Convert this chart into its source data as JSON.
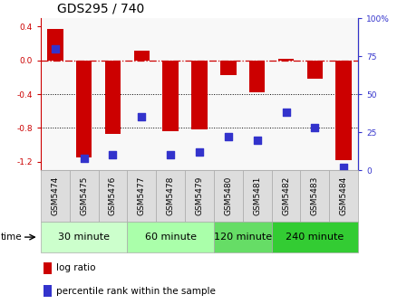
{
  "title": "GDS295 / 740",
  "samples": [
    "GSM5474",
    "GSM5475",
    "GSM5476",
    "GSM5477",
    "GSM5478",
    "GSM5479",
    "GSM5480",
    "GSM5481",
    "GSM5482",
    "GSM5483",
    "GSM5484"
  ],
  "log_ratio": [
    0.37,
    -1.15,
    -0.87,
    0.12,
    -0.84,
    -0.82,
    -0.17,
    -0.38,
    0.02,
    -0.22,
    -1.18
  ],
  "percentile": [
    80,
    8,
    10,
    35,
    10,
    12,
    22,
    20,
    38,
    28,
    2
  ],
  "ylim_left": [
    -1.3,
    0.5
  ],
  "ylim_right": [
    0,
    100
  ],
  "yticks_left": [
    -1.2,
    -0.8,
    -0.4,
    0.0,
    0.4
  ],
  "yticks_right": [
    0,
    25,
    50,
    75,
    100
  ],
  "ytick_labels_right": [
    "0",
    "25",
    "50",
    "75",
    "100%"
  ],
  "bar_color": "#cc0000",
  "dot_color": "#3333cc",
  "hline_color": "#cc0000",
  "grid_color": "#000000",
  "time_groups": [
    {
      "label": "30 minute",
      "start": 0,
      "end": 2,
      "color": "#ccffcc"
    },
    {
      "label": "60 minute",
      "start": 3,
      "end": 5,
      "color": "#aaffaa"
    },
    {
      "label": "120 minute",
      "start": 6,
      "end": 7,
      "color": "#66dd66"
    },
    {
      "label": "240 minute",
      "start": 8,
      "end": 10,
      "color": "#33cc33"
    }
  ],
  "bar_width": 0.55,
  "dot_size": 28,
  "title_fontsize": 10,
  "tick_fontsize": 6.5,
  "label_fontsize": 7.5,
  "legend_fontsize": 7.5,
  "time_label_fontsize": 8,
  "bg_color": "#f8f8f8",
  "box_color": "#dddddd",
  "spine_color": "#aaaaaa"
}
